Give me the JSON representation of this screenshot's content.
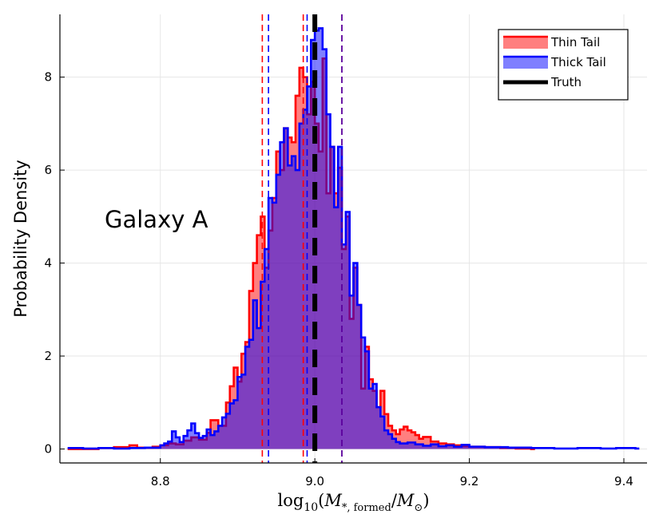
{
  "chart_data": {
    "type": "histogram",
    "xlabel_parts": {
      "prefix": "log",
      "sub": "10",
      "open": "(",
      "M1": "M",
      "sub1": "*, formed",
      "slash": "/",
      "M2": "M",
      "sub2": "⊙",
      "close": ")"
    },
    "ylabel": "Probability Density",
    "annotation": "Galaxy A",
    "xlim": [
      8.67,
      9.43
    ],
    "ylim": [
      -0.3,
      9.35
    ],
    "xticks": [
      8.8,
      9.0,
      9.2,
      9.4
    ],
    "xtick_labels": [
      "8.8",
      "9.0",
      "9.2",
      "9.4"
    ],
    "yticks": [
      0,
      2,
      4,
      6,
      8
    ],
    "ytick_labels": [
      "0",
      "2",
      "4",
      "6",
      "8"
    ],
    "grid": true,
    "legend_position": "top-right",
    "series": [
      {
        "name": "Thin Tail",
        "line_color": "#ff0000",
        "fill_color": "#ff0000",
        "fill_opacity": 0.5,
        "dashed_lines": [
          8.932,
          8.985
        ],
        "points": [
          [
            8.68,
            0.0
          ],
          [
            8.72,
            0.02
          ],
          [
            8.74,
            0.04
          ],
          [
            8.76,
            0.08
          ],
          [
            8.77,
            0.03
          ],
          [
            8.79,
            0.05
          ],
          [
            8.8,
            0.08
          ],
          [
            8.81,
            0.12
          ],
          [
            8.82,
            0.1
          ],
          [
            8.83,
            0.18
          ],
          [
            8.84,
            0.25
          ],
          [
            8.85,
            0.2
          ],
          [
            8.86,
            0.35
          ],
          [
            8.865,
            0.62
          ],
          [
            8.875,
            0.5
          ],
          [
            8.885,
            1.0
          ],
          [
            8.89,
            1.35
          ],
          [
            8.895,
            1.75
          ],
          [
            8.9,
            1.45
          ],
          [
            8.905,
            2.05
          ],
          [
            8.91,
            2.3
          ],
          [
            8.915,
            3.4
          ],
          [
            8.92,
            4.0
          ],
          [
            8.925,
            4.6
          ],
          [
            8.93,
            5.0
          ],
          [
            8.935,
            3.9
          ],
          [
            8.94,
            4.7
          ],
          [
            8.945,
            5.4
          ],
          [
            8.95,
            6.4
          ],
          [
            8.955,
            6.0
          ],
          [
            8.96,
            6.9
          ],
          [
            8.965,
            6.7
          ],
          [
            8.97,
            6.6
          ],
          [
            8.975,
            7.6
          ],
          [
            8.98,
            8.2
          ],
          [
            8.985,
            8.0
          ],
          [
            8.99,
            7.2
          ],
          [
            8.995,
            7.9
          ],
          [
            9.0,
            7.0
          ],
          [
            9.005,
            6.4
          ],
          [
            9.01,
            8.4
          ],
          [
            9.015,
            5.5
          ],
          [
            9.02,
            6.5
          ],
          [
            9.025,
            5.5
          ],
          [
            9.03,
            6.05
          ],
          [
            9.035,
            4.3
          ],
          [
            9.04,
            5.0
          ],
          [
            9.045,
            2.8
          ],
          [
            9.05,
            3.9
          ],
          [
            9.055,
            3.1
          ],
          [
            9.06,
            1.3
          ],
          [
            9.065,
            2.2
          ],
          [
            9.07,
            1.5
          ],
          [
            9.075,
            1.25
          ],
          [
            9.08,
            0.9
          ],
          [
            9.085,
            1.25
          ],
          [
            9.09,
            0.75
          ],
          [
            9.095,
            0.5
          ],
          [
            9.1,
            0.4
          ],
          [
            9.105,
            0.32
          ],
          [
            9.11,
            0.42
          ],
          [
            9.115,
            0.48
          ],
          [
            9.12,
            0.4
          ],
          [
            9.125,
            0.36
          ],
          [
            9.13,
            0.3
          ],
          [
            9.135,
            0.22
          ],
          [
            9.14,
            0.26
          ],
          [
            9.15,
            0.16
          ],
          [
            9.16,
            0.12
          ],
          [
            9.17,
            0.1
          ],
          [
            9.18,
            0.08
          ],
          [
            9.19,
            0.06
          ],
          [
            9.2,
            0.05
          ],
          [
            9.22,
            0.04
          ],
          [
            9.24,
            0.02
          ],
          [
            9.26,
            0.01
          ],
          [
            9.28,
            0.0
          ]
        ]
      },
      {
        "name": "Thick Tail",
        "line_color": "#0000ff",
        "fill_color": "#0000ff",
        "fill_opacity": 0.5,
        "dashed_lines": [
          8.94,
          8.99
        ],
        "points": [
          [
            8.68,
            0.02
          ],
          [
            8.7,
            0.01
          ],
          [
            8.72,
            0.02
          ],
          [
            8.74,
            0.01
          ],
          [
            8.76,
            0.02
          ],
          [
            8.78,
            0.03
          ],
          [
            8.8,
            0.08
          ],
          [
            8.805,
            0.12
          ],
          [
            8.81,
            0.16
          ],
          [
            8.815,
            0.38
          ],
          [
            8.82,
            0.25
          ],
          [
            8.825,
            0.15
          ],
          [
            8.83,
            0.28
          ],
          [
            8.835,
            0.4
          ],
          [
            8.84,
            0.55
          ],
          [
            8.845,
            0.34
          ],
          [
            8.85,
            0.24
          ],
          [
            8.855,
            0.28
          ],
          [
            8.86,
            0.42
          ],
          [
            8.865,
            0.3
          ],
          [
            8.87,
            0.38
          ],
          [
            8.875,
            0.5
          ],
          [
            8.88,
            0.68
          ],
          [
            8.885,
            0.76
          ],
          [
            8.89,
            0.98
          ],
          [
            8.895,
            1.05
          ],
          [
            8.9,
            1.55
          ],
          [
            8.905,
            1.6
          ],
          [
            8.91,
            2.2
          ],
          [
            8.915,
            2.35
          ],
          [
            8.92,
            3.2
          ],
          [
            8.925,
            2.6
          ],
          [
            8.93,
            3.6
          ],
          [
            8.935,
            4.3
          ],
          [
            8.94,
            5.4
          ],
          [
            8.945,
            5.3
          ],
          [
            8.95,
            5.9
          ],
          [
            8.955,
            6.6
          ],
          [
            8.96,
            6.9
          ],
          [
            8.965,
            6.1
          ],
          [
            8.97,
            6.3
          ],
          [
            8.975,
            6.0
          ],
          [
            8.98,
            7.0
          ],
          [
            8.985,
            7.3
          ],
          [
            8.99,
            7.8
          ],
          [
            8.995,
            8.8
          ],
          [
            9.0,
            9.0
          ],
          [
            9.005,
            9.05
          ],
          [
            9.01,
            8.6
          ],
          [
            9.015,
            7.2
          ],
          [
            9.02,
            6.5
          ],
          [
            9.025,
            5.2
          ],
          [
            9.03,
            6.5
          ],
          [
            9.035,
            4.4
          ],
          [
            9.04,
            5.1
          ],
          [
            9.045,
            3.3
          ],
          [
            9.05,
            4.0
          ],
          [
            9.055,
            3.1
          ],
          [
            9.06,
            2.4
          ],
          [
            9.065,
            2.1
          ],
          [
            9.07,
            1.3
          ],
          [
            9.075,
            1.4
          ],
          [
            9.08,
            0.9
          ],
          [
            9.085,
            0.7
          ],
          [
            9.09,
            0.4
          ],
          [
            9.095,
            0.32
          ],
          [
            9.1,
            0.22
          ],
          [
            9.105,
            0.15
          ],
          [
            9.11,
            0.12
          ],
          [
            9.12,
            0.14
          ],
          [
            9.13,
            0.1
          ],
          [
            9.14,
            0.07
          ],
          [
            9.15,
            0.1
          ],
          [
            9.16,
            0.06
          ],
          [
            9.17,
            0.08
          ],
          [
            9.18,
            0.05
          ],
          [
            9.19,
            0.09
          ],
          [
            9.2,
            0.05
          ],
          [
            9.22,
            0.04
          ],
          [
            9.25,
            0.03
          ],
          [
            9.28,
            0.02
          ],
          [
            9.31,
            0.01
          ],
          [
            9.34,
            0.02
          ],
          [
            9.37,
            0.01
          ],
          [
            9.39,
            0.02
          ],
          [
            9.415,
            0.01
          ]
        ]
      }
    ],
    "extra_dashed_lines": [
      {
        "x": 9.035,
        "color": "#5b009c"
      }
    ],
    "truth": {
      "name": "Truth",
      "x": 9.0,
      "color": "#000000"
    }
  }
}
